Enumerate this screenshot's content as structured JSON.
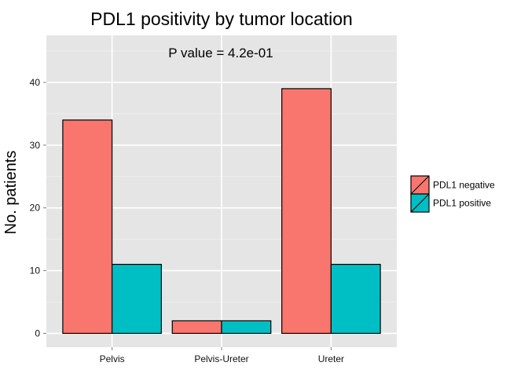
{
  "chart_data": {
    "type": "bar",
    "title": "PDL1 positivity by tumor location",
    "annotation": "P value = 4.2e-01",
    "xlabel": "",
    "ylabel": "No. patients",
    "categories": [
      "Pelvis",
      "Pelvis-Ureter",
      "Ureter"
    ],
    "series": [
      {
        "name": "PDL1 negative",
        "values": [
          34,
          2,
          39
        ],
        "color": "#F8766D"
      },
      {
        "name": "PDL1 positive",
        "values": [
          11,
          2,
          11
        ],
        "color": "#00BFC4"
      }
    ],
    "ylim": [
      -2.2,
      47.5
    ],
    "yticks": [
      0,
      10,
      20,
      30,
      40
    ],
    "yticklabels": [
      "0",
      "10",
      "20",
      "30",
      "40"
    ],
    "grid": true,
    "legend_position": "right",
    "panel_background": "#E5E5E5"
  }
}
